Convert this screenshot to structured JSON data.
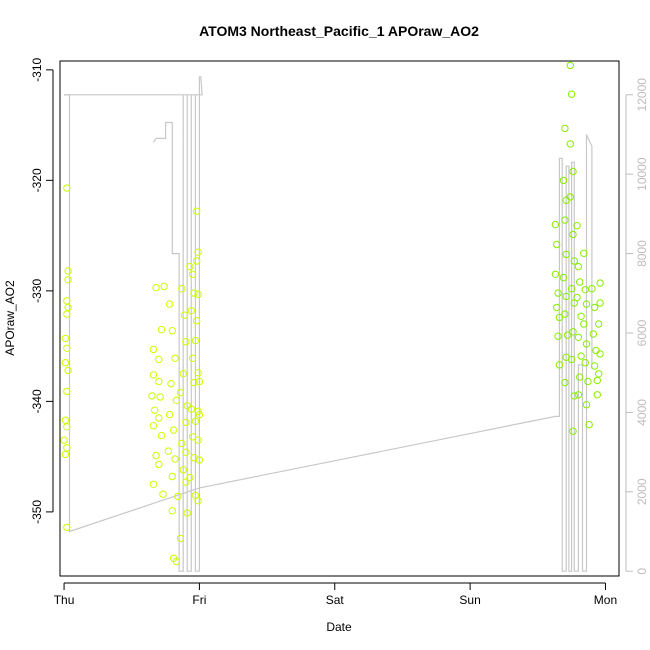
{
  "chart_data": {
    "type": "scatter",
    "title": "ATOM3 Northeast_Pacific_1 APOraw_AO2",
    "xlabel": "Date",
    "ylabel": "APOraw_AO2",
    "x_ticks": [
      "Thu",
      "Fri",
      "Sat",
      "Sun",
      "Mon"
    ],
    "xlim": [
      -0.03,
      4.1
    ],
    "ylim": [
      -355.8,
      -309.2
    ],
    "y_ticks": [
      -350,
      -340,
      -330,
      -320,
      -310
    ],
    "y2lim": [
      -120,
      12850
    ],
    "y2_ticks": [
      0,
      2000,
      4000,
      6000,
      8000,
      10000,
      12000
    ],
    "colors": {
      "points_early": "#ccff00",
      "points_late": "#88ee00",
      "line": "#c8c8c8",
      "axis": "#000000",
      "right_axis": "#bdbdbd"
    },
    "series": [
      {
        "kind": "points",
        "points": [
          [
            0.02,
            -320.7
          ],
          [
            0.03,
            -328.2
          ],
          [
            0.03,
            -329
          ],
          [
            0.02,
            -330.9
          ],
          [
            0.03,
            -331.5
          ],
          [
            0.02,
            -332.1
          ],
          [
            0.01,
            -334.3
          ],
          [
            0.02,
            -335.2
          ],
          [
            0.01,
            -336.5
          ],
          [
            0.03,
            -337.2
          ],
          [
            0.02,
            -339.1
          ],
          [
            0.01,
            -341.7
          ],
          [
            0.02,
            -342.3
          ],
          [
            0.0,
            -343.5
          ],
          [
            0.02,
            -344.2
          ],
          [
            0.01,
            -344.8
          ],
          [
            0.02,
            -351.4
          ],
          [
            0.68,
            -329.7
          ],
          [
            0.74,
            -329.6
          ],
          [
            0.66,
            -335.3
          ],
          [
            0.72,
            -333.5
          ],
          [
            0.7,
            -336.2
          ],
          [
            0.66,
            -337.6
          ],
          [
            0.7,
            -338.2
          ],
          [
            0.65,
            -339.5
          ],
          [
            0.71,
            -339.6
          ],
          [
            0.67,
            -340.8
          ],
          [
            0.7,
            -341.5
          ],
          [
            0.66,
            -342.2
          ],
          [
            0.72,
            -343.1
          ],
          [
            0.68,
            -344.9
          ],
          [
            0.7,
            -345.7
          ],
          [
            0.66,
            -347.5
          ],
          [
            0.73,
            -348.4
          ],
          [
            0.78,
            -331.2
          ],
          [
            0.8,
            -333.6
          ],
          [
            0.82,
            -336.1
          ],
          [
            0.79,
            -338.4
          ],
          [
            0.83,
            -339.9
          ],
          [
            0.78,
            -341.2
          ],
          [
            0.81,
            -342.6
          ],
          [
            0.77,
            -344.5
          ],
          [
            0.82,
            -345.2
          ],
          [
            0.8,
            -346.8
          ],
          [
            0.84,
            -348.6
          ],
          [
            0.8,
            -349.9
          ],
          [
            0.81,
            -354.2
          ],
          [
            0.83,
            -354.5
          ],
          [
            0.87,
            -329.8
          ],
          [
            0.89,
            -332.2
          ],
          [
            0.9,
            -334.6
          ],
          [
            0.88,
            -337.5
          ],
          [
            0.86,
            -339.2
          ],
          [
            0.91,
            -340.4
          ],
          [
            0.9,
            -341.9
          ],
          [
            0.87,
            -343.8
          ],
          [
            0.9,
            -344.6
          ],
          [
            0.88,
            -346.2
          ],
          [
            0.9,
            -347.3
          ],
          [
            0.91,
            -350.1
          ],
          [
            0.86,
            -352.4
          ],
          [
            0.93,
            -327.8
          ],
          [
            0.95,
            -328.5
          ],
          [
            0.96,
            -330.2
          ],
          [
            0.94,
            -331.8
          ],
          [
            0.97,
            -334.5
          ],
          [
            0.95,
            -336.1
          ],
          [
            0.96,
            -338.3
          ],
          [
            0.94,
            -340.7
          ],
          [
            0.97,
            -341.8
          ],
          [
            0.95,
            -343.2
          ],
          [
            0.96,
            -345.1
          ],
          [
            0.93,
            -346.9
          ],
          [
            0.97,
            -348.5
          ],
          [
            0.98,
            -322.8
          ],
          [
            0.99,
            -326.5
          ],
          [
            0.98,
            -327.3
          ],
          [
            0.99,
            -330.3
          ],
          [
            0.98,
            -332.7
          ],
          [
            0.99,
            -337.4
          ],
          [
            1.0,
            -338.2
          ],
          [
            0.99,
            -340.9
          ],
          [
            1.0,
            -341.2
          ],
          [
            0.99,
            -343.5
          ],
          [
            1.0,
            -345.3
          ],
          [
            0.99,
            -349.0
          ],
          [
            3.63,
            -324
          ],
          [
            3.64,
            -325.8
          ],
          [
            3.63,
            -328.5
          ],
          [
            3.65,
            -330.2
          ],
          [
            3.64,
            -331.5
          ],
          [
            3.66,
            -332.4
          ],
          [
            3.65,
            -334.1
          ],
          [
            3.66,
            -336.7
          ],
          [
            3.7,
            -315.3
          ],
          [
            3.69,
            -320
          ],
          [
            3.71,
            -321.8
          ],
          [
            3.7,
            -323.6
          ],
          [
            3.71,
            -326.7
          ],
          [
            3.69,
            -328.8
          ],
          [
            3.71,
            -330.5
          ],
          [
            3.7,
            -332.1
          ],
          [
            3.72,
            -334
          ],
          [
            3.71,
            -336
          ],
          [
            3.7,
            -338.3
          ],
          [
            3.74,
            -309.6
          ],
          [
            3.75,
            -312.2
          ],
          [
            3.74,
            -316.7
          ],
          [
            3.76,
            -319.2
          ],
          [
            3.74,
            -321.5
          ],
          [
            3.76,
            -324.9
          ],
          [
            3.77,
            -327.3
          ],
          [
            3.75,
            -329.8
          ],
          [
            3.77,
            -331.1
          ],
          [
            3.76,
            -333.7
          ],
          [
            3.75,
            -336.2
          ],
          [
            3.77,
            -339.5
          ],
          [
            3.76,
            -342.7
          ],
          [
            3.79,
            -324.1
          ],
          [
            3.8,
            -327.8
          ],
          [
            3.81,
            -329.2
          ],
          [
            3.79,
            -330.6
          ],
          [
            3.82,
            -332.3
          ],
          [
            3.8,
            -334.2
          ],
          [
            3.82,
            -335.9
          ],
          [
            3.81,
            -337.8
          ],
          [
            3.8,
            -339.4
          ],
          [
            3.84,
            -326.6
          ],
          [
            3.85,
            -329.9
          ],
          [
            3.86,
            -331.2
          ],
          [
            3.84,
            -333
          ],
          [
            3.86,
            -334.8
          ],
          [
            3.85,
            -336.5
          ],
          [
            3.87,
            -338.2
          ],
          [
            3.86,
            -340.3
          ],
          [
            3.88,
            -342.1
          ],
          [
            3.9,
            -329.8
          ],
          [
            3.92,
            -331.5
          ],
          [
            3.91,
            -333.9
          ],
          [
            3.93,
            -335.4
          ],
          [
            3.92,
            -336.8
          ],
          [
            3.94,
            -338.1
          ],
          [
            3.96,
            -329.3
          ],
          [
            3.96,
            -331.1
          ],
          [
            3.95,
            -333
          ],
          [
            3.96,
            -335.7
          ],
          [
            3.95,
            -337.5
          ],
          [
            3.94,
            -339.4
          ]
        ]
      },
      {
        "kind": "line",
        "axis": "right",
        "points": [
          [
            0.0,
            12000
          ],
          [
            0.0,
            12000
          ],
          [
            0.04,
            12000
          ],
          [
            0.04,
            1000
          ],
          [
            1.0,
            2100
          ],
          [
            3.63,
            3900
          ],
          [
            3.66,
            3900
          ],
          [
            3.66,
            10400
          ],
          [
            3.68,
            10400
          ],
          [
            3.68,
            0
          ],
          [
            3.71,
            0
          ],
          [
            3.71,
            10200
          ],
          [
            3.73,
            10200
          ],
          [
            3.73,
            0
          ],
          [
            3.75,
            0
          ],
          [
            3.75,
            10300
          ],
          [
            3.77,
            10300
          ],
          [
            3.77,
            0
          ],
          [
            3.8,
            0
          ],
          [
            3.8,
            5200
          ],
          [
            3.83,
            5200
          ],
          [
            3.83,
            0
          ],
          [
            3.86,
            0
          ],
          [
            3.86,
            11000
          ],
          [
            3.9,
            10700
          ],
          [
            3.9,
            5100
          ]
        ]
      },
      {
        "kind": "line",
        "axis": "right",
        "points": [
          [
            0.0,
            12000
          ],
          [
            1.02,
            12000
          ],
          [
            1.01,
            12450
          ],
          [
            1.0,
            12450
          ],
          [
            1.0,
            0
          ],
          [
            0.97,
            0
          ],
          [
            0.97,
            12000
          ],
          [
            0.94,
            12000
          ],
          [
            0.94,
            0
          ],
          [
            0.91,
            0
          ],
          [
            0.91,
            12000
          ],
          [
            0.88,
            12000
          ],
          [
            0.88,
            0
          ],
          [
            0.85,
            0
          ],
          [
            0.85,
            8000
          ],
          [
            0.8,
            8000
          ],
          [
            0.8,
            11300
          ],
          [
            0.75,
            11300
          ],
          [
            0.75,
            10900
          ],
          [
            0.68,
            10900
          ],
          [
            0.66,
            10800
          ]
        ]
      }
    ]
  }
}
